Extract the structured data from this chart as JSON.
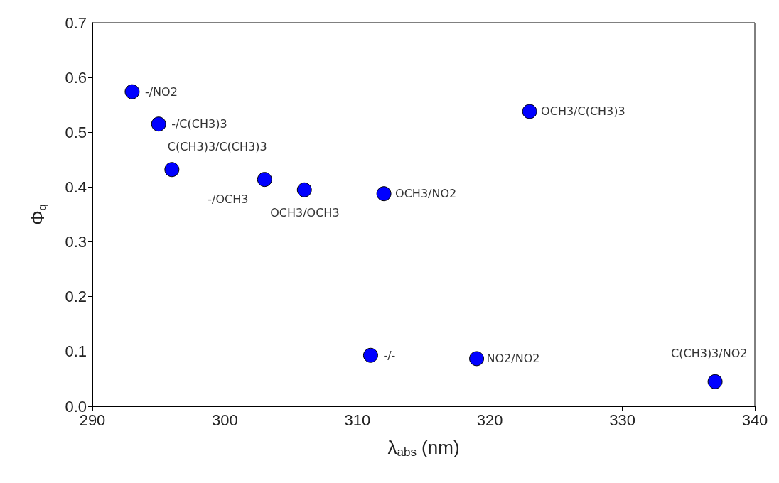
{
  "chart_data": {
    "type": "scatter",
    "xlabel": "λ$_{abs}$ (nm)",
    "ylabel": "Φ$_{q}$",
    "x": [
      293,
      295,
      296,
      303,
      306,
      312,
      323,
      311,
      319,
      337
    ],
    "values": [
      0.574,
      0.515,
      0.432,
      0.414,
      0.395,
      0.388,
      0.538,
      0.093,
      0.087,
      0.045
    ],
    "color": "#0000ff",
    "marker": "circle",
    "xlim": [
      290,
      340
    ],
    "xticks": [
      290,
      300,
      310,
      320,
      330,
      340
    ],
    "ylim": [
      0,
      0.7
    ],
    "yticks": [
      {
        "value": 0,
        "label": "0.0"
      },
      0.1,
      0.2,
      0.3,
      0.4,
      0.5,
      0.6,
      0.7
    ],
    "annotations": [
      {
        "text": "-/NO2",
        "x": 293,
        "y": 0.574
      },
      {
        "text": "-/C(CH3)3",
        "x": 295,
        "y": 0.515
      },
      {
        "text": "C(CH3)3/C(CH3)3",
        "x": 296,
        "y": 0.432
      },
      {
        "text": "-/OCH3",
        "x": 303,
        "y": 0.414
      },
      {
        "text": "OCH3/OCH3",
        "x": 306,
        "y": 0.395
      },
      {
        "text": "OCH3/NO2",
        "x": 312,
        "y": 0.388
      },
      {
        "text": "OCH3/C(CH3)3",
        "x": 323,
        "y": 0.538
      },
      {
        "text": "-/-",
        "x": 311,
        "y": 0.093
      },
      {
        "text": "NO2/NO2",
        "x": 319,
        "y": 0.087
      },
      {
        "text": "C(CH3)3/NO2",
        "x": 337,
        "y": 0.045
      }
    ]
  }
}
